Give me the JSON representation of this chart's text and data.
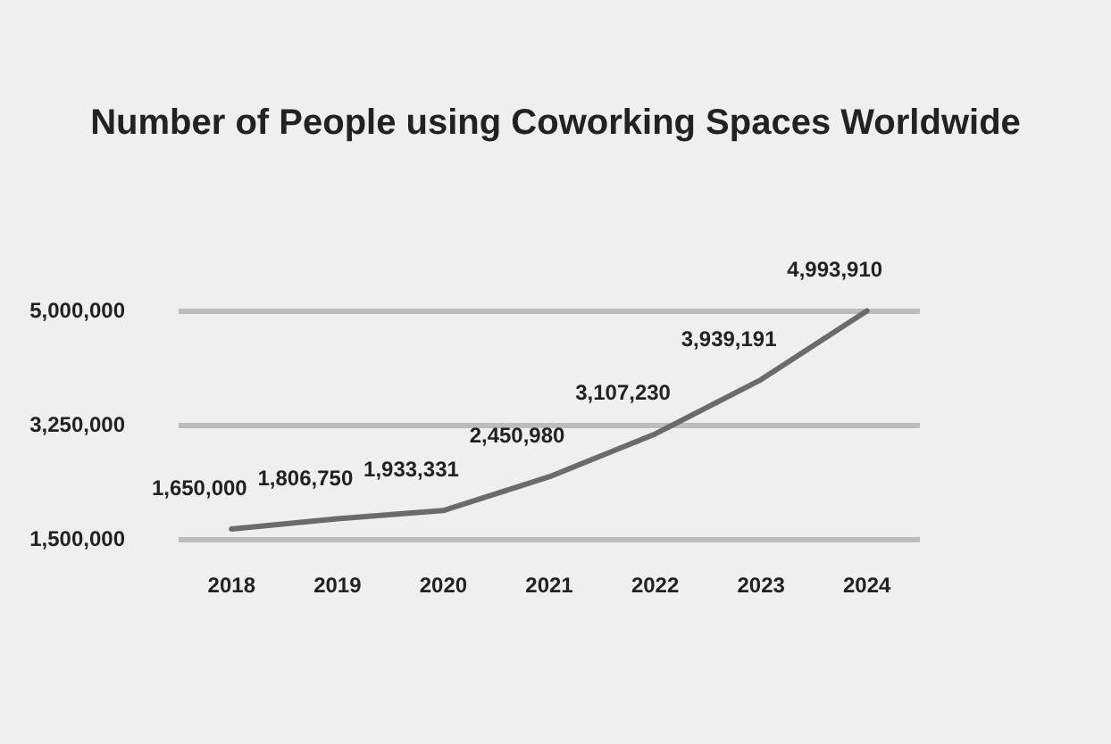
{
  "chart_data": {
    "type": "line",
    "title": "Number of People using Coworking Spaces Worldwide",
    "categories": [
      "2018",
      "2019",
      "2020",
      "2021",
      "2022",
      "2023",
      "2024"
    ],
    "series": [
      {
        "color": "#6b6b6b",
        "values": [
          1650000,
          1806750,
          1933331,
          2450980,
          3107230,
          3939191,
          4993910
        ],
        "value_labels": [
          "1,650,000",
          "1,806,750",
          "1,933,331",
          "2,450,980",
          "3,107,230",
          "3,939,191",
          "4,993,910"
        ]
      }
    ],
    "ylim": [
      1500000,
      5000000
    ],
    "yticks": [
      {
        "value": 1500000,
        "label": "1,500,000"
      },
      {
        "value": 3250000,
        "label": "3,250,000"
      },
      {
        "value": 5000000,
        "label": "5,000,000"
      }
    ],
    "grid": "y",
    "marker": "none",
    "line_style": "solid"
  }
}
